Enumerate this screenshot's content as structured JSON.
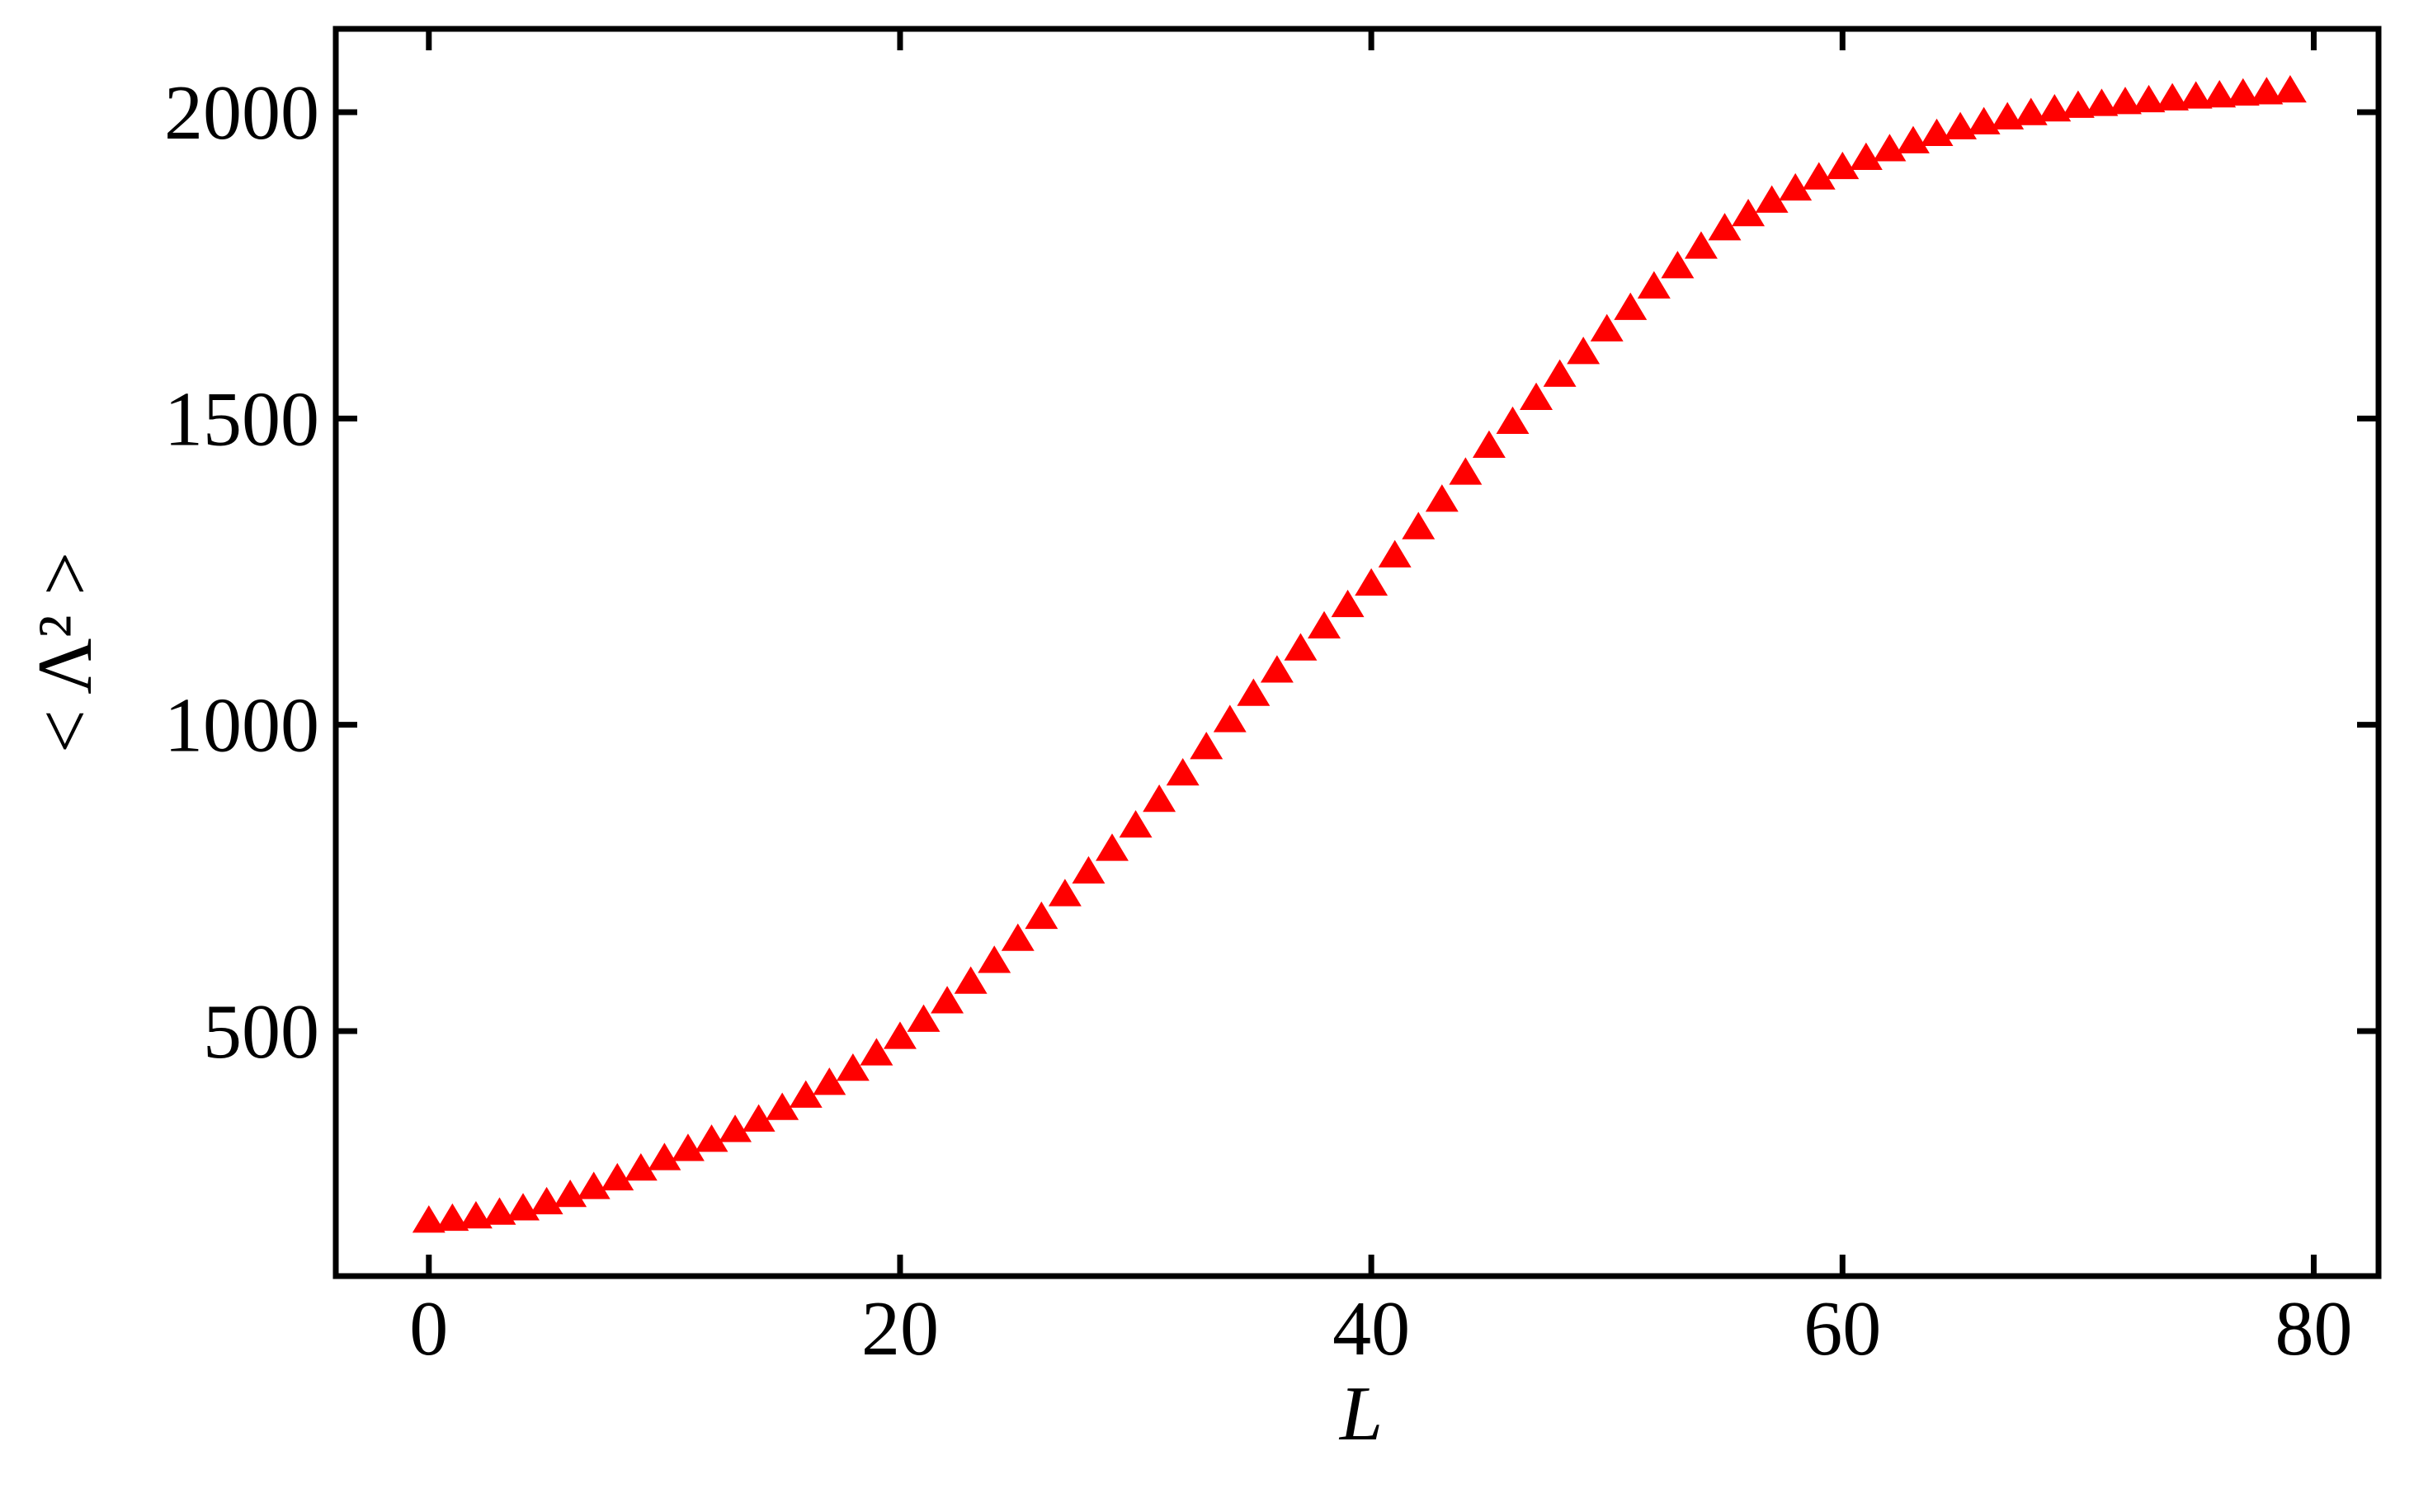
{
  "chart_data": {
    "type": "scatter",
    "xlabel": "L",
    "ylabel": "< Λ² >",
    "series": [
      {
        "name": null,
        "color": "#ff0000",
        "marker": "triangle",
        "x": [
          0,
          1,
          2,
          3,
          4,
          5,
          6,
          7,
          8,
          9,
          10,
          11,
          12,
          13,
          14,
          15,
          16,
          17,
          18,
          19,
          20,
          21,
          22,
          23,
          24,
          25,
          26,
          27,
          28,
          29,
          30,
          31,
          32,
          33,
          34,
          35,
          36,
          37,
          38,
          39,
          40,
          41,
          42,
          43,
          44,
          45,
          46,
          47,
          48,
          49,
          50,
          51,
          52,
          53,
          54,
          55,
          56,
          57,
          58,
          59,
          60,
          61,
          62,
          63,
          64,
          65,
          66,
          67,
          68,
          69,
          70,
          71,
          72,
          73,
          74,
          75,
          76,
          77,
          78,
          79
        ],
        "values": [
          190,
          193,
          197,
          203,
          210,
          220,
          232,
          245,
          259,
          275,
          292,
          307,
          322,
          338,
          355,
          374,
          394,
          415,
          438,
          463,
          490,
          518,
          548,
          580,
          614,
          650,
          686,
          723,
          760,
          797,
          835,
          877,
          920,
          963,
          1007,
          1050,
          1088,
          1124,
          1160,
          1195,
          1230,
          1276,
          1322,
          1367,
          1411,
          1455,
          1494,
          1533,
          1571,
          1608,
          1645,
          1680,
          1715,
          1748,
          1780,
          1810,
          1833,
          1855,
          1875,
          1893,
          1910,
          1925,
          1939,
          1952,
          1964,
          1975,
          1983,
          1991,
          1998,
          2004,
          2010,
          2013,
          2016,
          2019,
          2022,
          2025,
          2027,
          2030,
          2032,
          2035
        ]
      }
    ],
    "xlim": [
      -3.95,
      82.75
    ],
    "ylim": [
      100,
      2136
    ],
    "xticks": [
      0,
      20,
      40,
      60,
      80
    ],
    "yticks": [
      500,
      1000,
      1500,
      2000
    ],
    "grid": false
  }
}
